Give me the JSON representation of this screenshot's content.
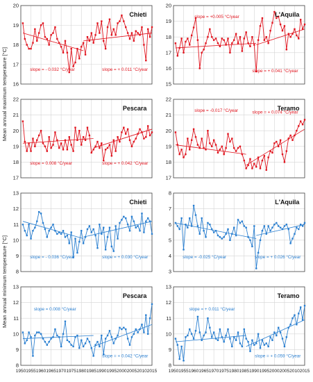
{
  "y_labels": {
    "max": "Mean annual maximum temperature [°C]",
    "min": "Mean annual minimum temperature [°C]"
  },
  "colors": {
    "max": "#e0141e",
    "min": "#2a7fd0"
  },
  "chart_data": [
    {
      "type": "line",
      "station": "Chieti",
      "variable": "max",
      "xlim": [
        1950,
        2015
      ],
      "ylim": [
        16,
        20
      ],
      "yticks": [
        16,
        17,
        18,
        19,
        20
      ],
      "x_start": 1951,
      "values": [
        19.1,
        18.3,
        18.0,
        17.8,
        17.8,
        18.1,
        18.8,
        18.2,
        18.6,
        19.0,
        19.1,
        18.4,
        18.3,
        18.0,
        18.5,
        18.6,
        18.9,
        18.3,
        18.1,
        17.9,
        17.6,
        18.2,
        17.6,
        16.6,
        17.8,
        16.9,
        17.1,
        17.8,
        17.3,
        17.9,
        18.1,
        17.5,
        18.4,
        18.2,
        18.6,
        18.1,
        18.5,
        19.1,
        18.6,
        19.2,
        18.2,
        17.8,
        18.9,
        19.3,
        18.5,
        18.8,
        18.5,
        19.1,
        19.2,
        19.5,
        19.2,
        18.9,
        18.6,
        18.3,
        18.6,
        18.2,
        18.7,
        18.6,
        18.5,
        18.9,
        18.0,
        17.2,
        18.8,
        18.4,
        18.9
      ],
      "trends": [
        {
          "label": "slope = - 0.032 °C/year",
          "x": [
            1951,
            1981
          ],
          "y": [
            18.6,
            17.7
          ]
        },
        {
          "label": "slope = + 0.011 °C/year",
          "x": [
            1981,
            2015
          ],
          "y": [
            18.2,
            18.6
          ]
        }
      ]
    },
    {
      "type": "line",
      "station": "L'Aquila",
      "variable": "max",
      "xlim": [
        1950,
        2015
      ],
      "ylim": [
        15,
        20
      ],
      "yticks": [
        15,
        16,
        17,
        18,
        19,
        20
      ],
      "x_start": 1951,
      "values": [
        17.6,
        16.8,
        17.3,
        17.9,
        17.0,
        17.7,
        17.9,
        17.5,
        18.1,
        18.6,
        19.2,
        17.8,
        16.0,
        17.0,
        17.2,
        17.6,
        18.0,
        18.5,
        18.0,
        17.8,
        17.9,
        17.6,
        17.4,
        17.9,
        17.8,
        17.5,
        17.9,
        17.0,
        17.6,
        17.8,
        18.2,
        17.6,
        18.0,
        17.1,
        17.9,
        18.3,
        17.6,
        17.4,
        18.0,
        17.5,
        15.8,
        17.8,
        18.7,
        19.2,
        17.8,
        18.0,
        17.6,
        18.4,
        18.9,
        19.6,
        19.2,
        19.3,
        18.8,
        18.4,
        18.7,
        17.2,
        18.2,
        18.0,
        18.2,
        18.5,
        18.1,
        17.9,
        19.1,
        18.5,
        18.8
      ],
      "trends": [
        {
          "label": "slope = +0.005 °C/year",
          "x": [
            1951,
            1991
          ],
          "y": [
            17.3,
            17.6
          ]
        },
        {
          "label": "slope = + 0.041 °C/year",
          "x": [
            1991,
            2015
          ],
          "y": [
            17.5,
            18.5
          ]
        }
      ]
    },
    {
      "type": "line",
      "station": "Pescara",
      "variable": "max",
      "xlim": [
        1950,
        2015
      ],
      "ylim": [
        17,
        22
      ],
      "yticks": [
        17,
        18,
        19,
        20,
        21,
        22
      ],
      "x_start": 1951,
      "values": [
        20.6,
        19.3,
        18.7,
        19.2,
        18.7,
        19.5,
        19.0,
        19.4,
        19.7,
        20.0,
        19.2,
        19.0,
        18.7,
        19.6,
        18.9,
        19.1,
        19.9,
        19.4,
        18.9,
        19.2,
        18.8,
        19.4,
        18.8,
        19.6,
        19.1,
        18.7,
        20.2,
        19.4,
        20.0,
        19.1,
        19.6,
        19.4,
        20.2,
        19.7,
        18.6,
        18.8,
        19.0,
        19.3,
        18.9,
        19.2,
        18.1,
        18.8,
        18.9,
        19.1,
        18.4,
        19.4,
        18.7,
        19.6,
        19.3,
        19.9,
        20.2,
        19.8,
        20.1,
        19.4,
        19.0,
        19.3,
        19.5,
        19.8,
        20.1,
        19.9,
        19.5,
        19.6,
        20.3,
        19.7,
        19.9
      ],
      "trends": [
        {
          "label": "slope = 0.008 °C/year",
          "x": [
            1951,
            1986
          ],
          "y": [
            19.2,
            19.5
          ]
        },
        {
          "label": "slope = + 0.042 °C/year",
          "x": [
            1986,
            2015
          ],
          "y": [
            18.9,
            20.1
          ]
        }
      ]
    },
    {
      "type": "line",
      "station": "Teramo",
      "variable": "max",
      "xlim": [
        1950,
        2015
      ],
      "ylim": [
        17,
        22
      ],
      "yticks": [
        17,
        18,
        19,
        20,
        21,
        22
      ],
      "x_start": 1951,
      "values": [
        19.9,
        19.1,
        18.5,
        18.8,
        18.3,
        18.5,
        19.5,
        18.8,
        19.4,
        20.1,
        19.6,
        19.1,
        18.9,
        19.5,
        18.9,
        18.8,
        20.0,
        19.2,
        19.0,
        19.4,
        19.1,
        18.6,
        18.8,
        19.0,
        18.5,
        18.9,
        19.8,
        19.3,
        19.5,
        18.9,
        18.7,
        18.9,
        19.0,
        18.5,
        18.1,
        17.6,
        17.8,
        18.2,
        17.6,
        17.9,
        17.7,
        18.3,
        17.6,
        18.1,
        18.4,
        17.5,
        18.3,
        18.7,
        18.6,
        19.2,
        19.3,
        19.0,
        19.4,
        18.5,
        18.0,
        18.7,
        19.5,
        19.7,
        19.4,
        19.7,
        20.0,
        20.3,
        20.6,
        20.4,
        20.7
      ],
      "trends": [
        {
          "label": "slope = -0.017 °C/year",
          "x": [
            1951,
            1986
          ],
          "y": [
            19.1,
            18.5
          ]
        },
        {
          "label": "slope = + 0.074 °C/year",
          "x": [
            1986,
            2015
          ],
          "y": [
            17.8,
            20.1
          ]
        }
      ]
    },
    {
      "type": "line",
      "station": "Chieti",
      "variable": "min",
      "xlim": [
        1950,
        2015
      ],
      "ylim": [
        8,
        13
      ],
      "yticks": [
        8,
        9,
        10,
        11,
        12,
        13
      ],
      "x_start": 1951,
      "values": [
        11.0,
        10.6,
        10.3,
        11.0,
        10.1,
        10.6,
        10.8,
        11.2,
        11.8,
        11.7,
        11.1,
        10.7,
        10.2,
        10.6,
        10.8,
        11.0,
        10.6,
        10.4,
        10.5,
        10.4,
        10.6,
        10.2,
        10.3,
        9.8,
        10.5,
        8.9,
        10.1,
        9.2,
        9.9,
        10.6,
        9.8,
        10.2,
        10.7,
        10.9,
        10.5,
        10.7,
        10.3,
        9.5,
        11.0,
        10.4,
        10.8,
        9.4,
        10.2,
        10.8,
        9.6,
        9.3,
        10.9,
        10.1,
        11.1,
        11.3,
        11.5,
        11.4,
        11.0,
        10.6,
        11.5,
        11.2,
        10.8,
        10.9,
        10.6,
        11.7,
        10.5,
        11.2,
        11.4,
        11.2,
        10.4
      ],
      "trends": [
        {
          "label": "slope = - 0.036 °C/year",
          "x": [
            1951,
            1981
          ],
          "y": [
            11.2,
            10.1
          ]
        },
        {
          "label": "slope = + 0.030 °C/year",
          "x": [
            1981,
            2015
          ],
          "y": [
            10.2,
            11.2
          ]
        }
      ]
    },
    {
      "type": "line",
      "station": "L'Aquila",
      "variable": "min",
      "xlim": [
        1950,
        2015
      ],
      "ylim": [
        3,
        8
      ],
      "yticks": [
        3,
        4,
        5,
        6,
        7,
        8
      ],
      "x_start": 1951,
      "values": [
        6.1,
        5.9,
        5.7,
        6.4,
        4.4,
        6.0,
        5.8,
        6.4,
        5.9,
        7.2,
        6.6,
        5.9,
        5.4,
        6.4,
        5.6,
        5.2,
        6.1,
        6.0,
        5.7,
        5.5,
        5.6,
        5.3,
        5.2,
        5.1,
        5.2,
        5.4,
        5.7,
        5.0,
        5.4,
        5.8,
        5.3,
        6.3,
        6.1,
        6.2,
        5.9,
        5.8,
        5.2,
        5.0,
        4.6,
        5.9,
        3.2,
        4.2,
        5.0,
        5.6,
        5.9,
        5.4,
        5.9,
        5.6,
        5.8,
        6.0,
        6.1,
        5.9,
        5.8,
        5.7,
        5.9,
        6.0,
        5.7,
        4.8,
        5.1,
        5.4,
        5.8,
        5.7,
        6.0,
        5.9,
        6.1
      ],
      "trends": [
        {
          "label": "slope = -0.025 °C/year",
          "x": [
            1951,
            1991
          ],
          "y": [
            6.1,
            5.1
          ]
        },
        {
          "label": "slope = + 0.026 °C/year",
          "x": [
            1991,
            2015
          ],
          "y": [
            5.3,
            6.0
          ]
        }
      ]
    },
    {
      "type": "line",
      "station": "Pescara",
      "variable": "min",
      "xlim": [
        1950,
        2015
      ],
      "ylim": [
        8,
        13
      ],
      "yticks": [
        8,
        9,
        10,
        11,
        12,
        13
      ],
      "x_start": 1951,
      "values": [
        10.1,
        9.4,
        9.6,
        10.1,
        9.8,
        8.6,
        9.9,
        10.1,
        10.1,
        10.0,
        9.7,
        9.5,
        9.3,
        9.5,
        9.7,
        9.8,
        10.3,
        9.9,
        9.8,
        9.2,
        10.0,
        10.8,
        9.6,
        9.5,
        9.3,
        9.2,
        9.8,
        9.9,
        9.1,
        9.6,
        9.2,
        9.4,
        9.7,
        9.5,
        9.1,
        8.6,
        9.3,
        9.5,
        9.2,
        9.9,
        8.7,
        9.7,
        9.9,
        10.2,
        9.8,
        9.4,
        9.7,
        9.9,
        10.4,
        10.3,
        10.4,
        10.3,
        9.7,
        9.3,
        9.8,
        10.0,
        10.3,
        10.1,
        10.3,
        10.6,
        10.1,
        11.2,
        10.0,
        11.0,
        11.9
      ],
      "trends": [
        {
          "label": "slope = 0.008 °C/year",
          "x": [
            1951,
            1986
          ],
          "y": [
            9.7,
            9.9
          ]
        },
        {
          "label": "slope = + 0.042 °C/year",
          "x": [
            1986,
            2015
          ],
          "y": [
            9.2,
            10.6
          ]
        }
      ]
    },
    {
      "type": "line",
      "station": "Teramo",
      "variable": "min",
      "xlim": [
        1950,
        2015
      ],
      "ylim": [
        8,
        13
      ],
      "yticks": [
        8,
        9,
        10,
        11,
        12,
        13
      ],
      "x_start": 1951,
      "values": [
        9.7,
        9.3,
        8.4,
        9.2,
        8.3,
        9.8,
        9.9,
        10.3,
        10.0,
        9.7,
        10.2,
        11.1,
        10.1,
        9.6,
        9.9,
        10.1,
        11.0,
        10.4,
        9.8,
        10.1,
        9.7,
        9.6,
        10.3,
        9.8,
        9.5,
        9.9,
        10.3,
        9.7,
        9.2,
        9.8,
        9.6,
        10.1,
        9.4,
        9.2,
        10.3,
        9.7,
        9.5,
        8.9,
        9.6,
        9.3,
        9.4,
        10.0,
        9.1,
        9.6,
        9.3,
        9.4,
        9.2,
        9.8,
        9.6,
        10.1,
        9.9,
        10.4,
        10.1,
        9.7,
        9.2,
        9.8,
        10.4,
        10.6,
        11.0,
        11.2,
        10.6,
        11.3,
        11.7,
        10.9,
        11.8
      ],
      "trends": [
        {
          "label": "slope = + 0.011 °C/year",
          "x": [
            1951,
            1986
          ],
          "y": [
            9.5,
            9.9
          ]
        },
        {
          "label": "slope = + 0.059 °C/year",
          "x": [
            1986,
            2015
          ],
          "y": [
            9.2,
            10.9
          ]
        }
      ]
    }
  ]
}
